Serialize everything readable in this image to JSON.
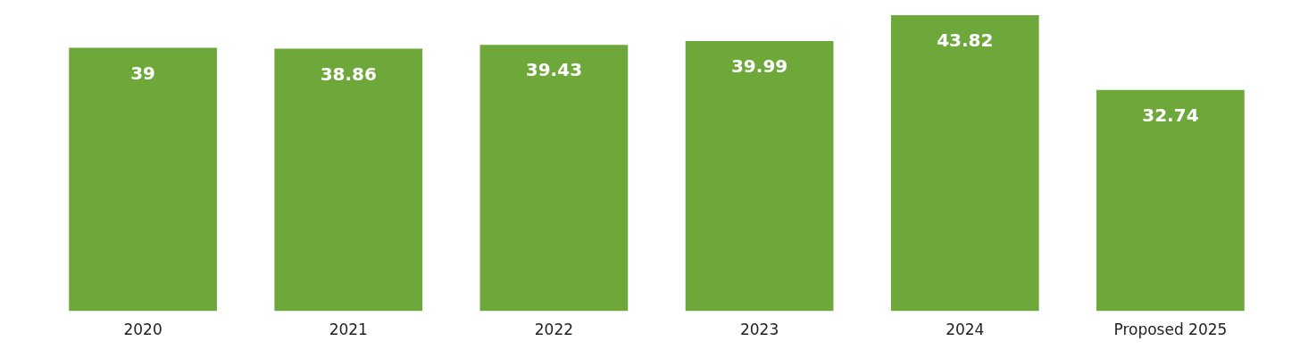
{
  "chart_data": {
    "type": "bar",
    "categories": [
      "2020",
      "2021",
      "2022",
      "2023",
      "2024",
      "Proposed 2025"
    ],
    "values": [
      39,
      38.86,
      39.43,
      39.99,
      43.82,
      32.74
    ],
    "color": "#6fa83a",
    "data_labels": true,
    "grid": false,
    "legend": false
  }
}
